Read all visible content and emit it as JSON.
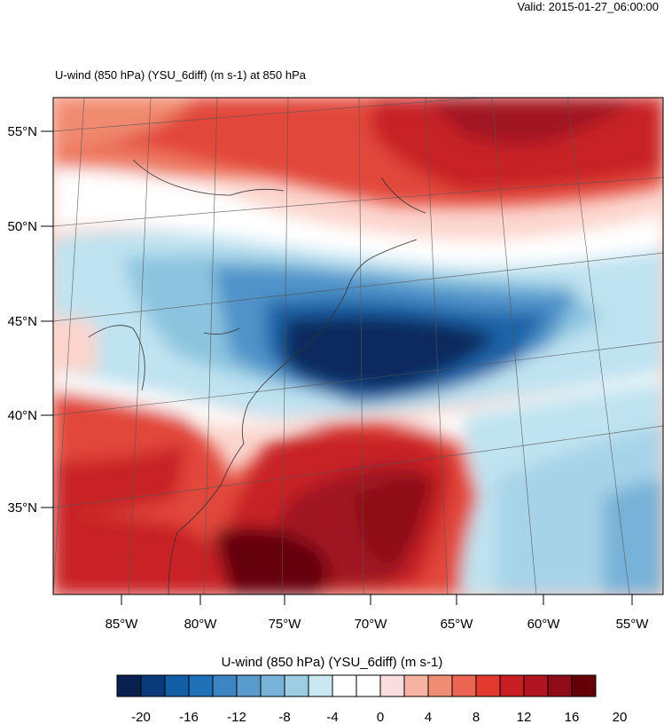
{
  "valid_text": "Valid: 2015-01-27_06:00:00",
  "title": "U-wind (850 hPa) (YSU_6diff)   (m s-1)     at   850 hPa",
  "colorbar_title": "U-wind (850 hPa) (YSU_6diff)  (m s-1)",
  "lon_labels": [
    "85°W",
    "80°W",
    "75°W",
    "70°W",
    "65°W",
    "60°W",
    "55°W"
  ],
  "lat_labels": [
    "55°N",
    "50°N",
    "45°N",
    "40°N",
    "35°N"
  ],
  "colorbar_ticks": [
    "-20",
    "-16",
    "-12",
    "-8",
    "-4",
    "0",
    "4",
    "8",
    "12",
    "16",
    "20"
  ],
  "colorbar_colors": [
    "#08214f",
    "#0b3a7a",
    "#115da6",
    "#1f70b7",
    "#3d84c2",
    "#5a9bcd",
    "#78b2d8",
    "#9ccde3",
    "#c8e8f2",
    "#ffffff",
    "#ffffff",
    "#fadedd",
    "#f6b3a2",
    "#f28d75",
    "#ec6552",
    "#e23a2f",
    "#c81f24",
    "#b21521",
    "#8e0c18",
    "#650008"
  ]
}
